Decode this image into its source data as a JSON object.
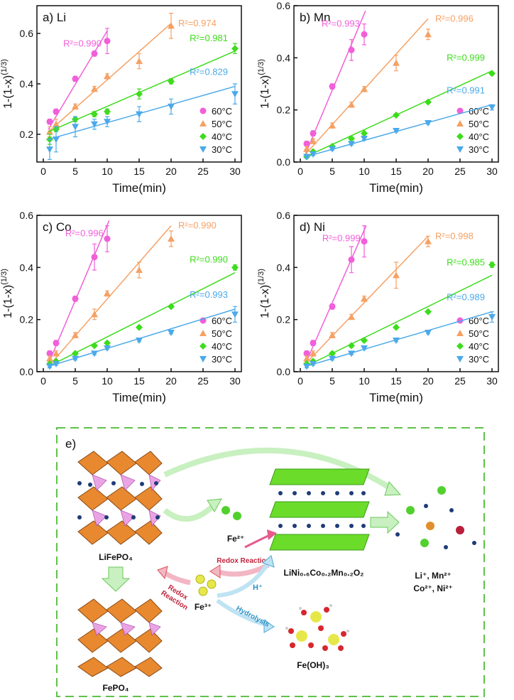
{
  "chart_data": [
    {
      "type": "scatter",
      "title": "a) Li",
      "xlabel": "Time(min)",
      "ylabel": "1-(1-x)",
      "ylabel_sup": "(1/3)",
      "x": [
        1,
        2,
        5,
        8,
        10,
        15,
        20,
        30
      ],
      "xlim": [
        -1,
        31
      ],
      "xticks": [
        0,
        5,
        10,
        15,
        20,
        25,
        30
      ],
      "ylim": [
        0.09,
        0.71
      ],
      "yticks": [
        0.2,
        0.4,
        0.6
      ],
      "legend": "lower right",
      "series": [
        {
          "name": "60°C",
          "color": "#f15fd9",
          "marker": "circle",
          "values": [
            0.25,
            0.29,
            0.42,
            0.52,
            0.57,
            null,
            null,
            null
          ],
          "errors": [
            0.01,
            0.01,
            0.01,
            0.01,
            0.05,
            null,
            null,
            null
          ],
          "fit": {
            "x": [
              0.8,
              10
            ],
            "y": [
              0.22,
              0.61
            ]
          },
          "r2": "R²=0.990"
        },
        {
          "name": "50°C",
          "color": "#f5a164",
          "marker": "triangle-up",
          "values": [
            0.21,
            0.24,
            0.31,
            0.38,
            0.43,
            0.49,
            0.63,
            null
          ],
          "errors": [
            0.02,
            0.02,
            0.01,
            0.01,
            0.01,
            0.03,
            0.05,
            null
          ],
          "fit": {
            "x": [
              0.8,
              20
            ],
            "y": [
              0.21,
              0.64
            ]
          },
          "r2": "R²=0.974"
        },
        {
          "name": "40°C",
          "color": "#3ddc1c",
          "marker": "diamond",
          "values": [
            0.18,
            0.22,
            0.26,
            0.28,
            0.29,
            0.36,
            0.41,
            0.54
          ],
          "errors": [
            0.02,
            0.01,
            0.01,
            0.01,
            0.01,
            0.02,
            0.01,
            0.02
          ],
          "fit": {
            "x": [
              0.8,
              30
            ],
            "y": [
              0.21,
              0.53
            ]
          },
          "r2": "R²=0.981"
        },
        {
          "name": "30°C",
          "color": "#4ba9ea",
          "marker": "triangle-down",
          "values": [
            0.14,
            0.18,
            0.23,
            0.24,
            0.25,
            0.28,
            0.31,
            0.36
          ],
          "errors": [
            0.04,
            0.05,
            0.04,
            0.02,
            0.02,
            0.03,
            0.03,
            0.04
          ],
          "fit": {
            "x": [
              0.8,
              30
            ],
            "y": [
              0.18,
              0.39
            ]
          },
          "r2": "R²=0.829"
        }
      ]
    },
    {
      "type": "scatter",
      "title": "b) Mn",
      "xlabel": "Time(min)",
      "ylabel": "1-(1-x)",
      "ylabel_sup": "(1/3)",
      "x": [
        1,
        2,
        5,
        8,
        10,
        15,
        20,
        30
      ],
      "xlim": [
        -1,
        31
      ],
      "xticks": [
        0,
        5,
        10,
        15,
        20,
        25,
        30
      ],
      "ylim": [
        0,
        0.6
      ],
      "yticks": [
        0.0,
        0.2,
        0.4,
        0.6
      ],
      "legend": "lower right",
      "series": [
        {
          "name": "60°C",
          "color": "#f15fd9",
          "marker": "circle",
          "values": [
            0.07,
            0.11,
            0.29,
            0.43,
            0.49,
            null,
            null,
            null
          ],
          "errors": [
            0.01,
            0.01,
            0.01,
            0.04,
            0.04,
            null,
            null,
            null
          ],
          "fit": {
            "x": [
              0.8,
              10.2
            ],
            "y": [
              0.03,
              0.58
            ]
          },
          "r2": "R²=0.993"
        },
        {
          "name": "50°C",
          "color": "#f5a164",
          "marker": "triangle-up",
          "values": [
            0.05,
            0.08,
            0.14,
            0.22,
            0.28,
            0.38,
            0.49,
            null
          ],
          "errors": [
            0.01,
            0.01,
            0.01,
            0.01,
            0.01,
            0.03,
            0.02,
            null
          ],
          "fit": {
            "x": [
              0.8,
              20
            ],
            "y": [
              0.03,
              0.55
            ]
          },
          "r2": "R²=0.996"
        },
        {
          "name": "40°C",
          "color": "#3ddc1c",
          "marker": "diamond",
          "values": [
            0.02,
            0.04,
            0.06,
            0.09,
            0.11,
            0.18,
            0.23,
            0.34
          ],
          "errors": [
            0.005,
            0.005,
            0.005,
            0.005,
            0.005,
            0.005,
            0.005,
            0.005
          ],
          "fit": {
            "x": [
              0.8,
              30
            ],
            "y": [
              0.02,
              0.35
            ]
          },
          "r2": "R²=0.999"
        },
        {
          "name": "30°C",
          "color": "#4ba9ea",
          "marker": "triangle-down",
          "values": [
            0.02,
            0.03,
            0.05,
            0.07,
            0.09,
            0.12,
            0.15,
            0.21
          ],
          "errors": [
            0.005,
            0.005,
            0.005,
            0.005,
            0.005,
            0.005,
            0.005,
            0.01
          ],
          "fit": {
            "x": [
              0.8,
              30
            ],
            "y": [
              0.02,
              0.22
            ]
          },
          "r2": "R²=0.991"
        }
      ]
    },
    {
      "type": "scatter",
      "title": "c) Co",
      "xlabel": "Time(min)",
      "ylabel": "1-(1-x)",
      "ylabel_sup": "(1/3)",
      "x": [
        1,
        2,
        5,
        8,
        10,
        15,
        20,
        30
      ],
      "xlim": [
        -1,
        31
      ],
      "xticks": [
        0,
        5,
        10,
        15,
        20,
        25,
        30
      ],
      "ylim": [
        0,
        0.6
      ],
      "yticks": [
        0.0,
        0.2,
        0.4,
        0.6
      ],
      "legend": "lower right",
      "series": [
        {
          "name": "60°C",
          "color": "#f15fd9",
          "marker": "circle",
          "values": [
            0.07,
            0.11,
            0.28,
            0.44,
            0.51,
            null,
            null,
            null
          ],
          "errors": [
            0.01,
            0.01,
            0.01,
            0.05,
            0.05,
            null,
            null,
            null
          ],
          "fit": {
            "x": [
              0.8,
              10.3
            ],
            "y": [
              0.03,
              0.58
            ]
          },
          "r2": "R²=0.996"
        },
        {
          "name": "50°C",
          "color": "#f5a164",
          "marker": "triangle-up",
          "values": [
            0.05,
            0.07,
            0.14,
            0.22,
            0.3,
            0.39,
            0.51,
            null
          ],
          "errors": [
            0.01,
            0.01,
            0.01,
            0.02,
            0.01,
            0.03,
            0.03,
            null
          ],
          "fit": {
            "x": [
              0.8,
              20
            ],
            "y": [
              0.02,
              0.56
            ]
          },
          "r2": "R²=0.990"
        },
        {
          "name": "40°C",
          "color": "#3ddc1c",
          "marker": "diamond",
          "values": [
            0.03,
            0.04,
            0.07,
            0.1,
            0.11,
            0.17,
            0.25,
            0.4
          ],
          "errors": [
            0.005,
            0.005,
            0.005,
            0.005,
            0.005,
            0.005,
            0.005,
            0.01
          ],
          "fit": {
            "x": [
              0.8,
              30
            ],
            "y": [
              0.02,
              0.38
            ]
          },
          "r2": "R²=0.990"
        },
        {
          "name": "30°C",
          "color": "#4ba9ea",
          "marker": "triangle-down",
          "values": [
            0.02,
            0.03,
            0.05,
            0.07,
            0.09,
            0.12,
            0.15,
            0.22
          ],
          "errors": [
            0.005,
            0.005,
            0.005,
            0.005,
            0.005,
            0.005,
            0.005,
            0.03
          ],
          "fit": {
            "x": [
              0.8,
              30
            ],
            "y": [
              0.02,
              0.24
            ]
          },
          "r2": "R²=0.993"
        }
      ]
    },
    {
      "type": "scatter",
      "title": "d) Ni",
      "xlabel": "Time(min)",
      "ylabel": "1-(1-x)",
      "ylabel_sup": "(1/3)",
      "x": [
        1,
        2,
        5,
        8,
        10,
        15,
        20,
        30
      ],
      "xlim": [
        -1,
        31
      ],
      "xticks": [
        0,
        5,
        10,
        15,
        20,
        25,
        30
      ],
      "ylim": [
        0,
        0.6
      ],
      "yticks": [
        0.0,
        0.2,
        0.4,
        0.6
      ],
      "legend": "lower right",
      "series": [
        {
          "name": "60°C",
          "color": "#f15fd9",
          "marker": "circle",
          "values": [
            0.07,
            0.11,
            0.25,
            0.43,
            0.5,
            null,
            null,
            null
          ],
          "errors": [
            0.01,
            0.01,
            0.01,
            0.05,
            0.06,
            null,
            null,
            null
          ],
          "fit": {
            "x": [
              0.8,
              10.3
            ],
            "y": [
              0.03,
              0.56
            ]
          },
          "r2": "R²=0.999"
        },
        {
          "name": "50°C",
          "color": "#f5a164",
          "marker": "triangle-up",
          "values": [
            0.05,
            0.07,
            0.14,
            0.21,
            0.28,
            0.37,
            0.5,
            null
          ],
          "errors": [
            0.01,
            0.01,
            0.01,
            0.01,
            0.01,
            0.05,
            0.02,
            null
          ],
          "fit": {
            "x": [
              0.8,
              20
            ],
            "y": [
              0.03,
              0.52
            ]
          },
          "r2": "R²=0.998"
        },
        {
          "name": "40°C",
          "color": "#3ddc1c",
          "marker": "diamond",
          "values": [
            0.03,
            0.04,
            0.07,
            0.1,
            0.12,
            0.17,
            0.23,
            0.41
          ],
          "errors": [
            0.005,
            0.005,
            0.005,
            0.005,
            0.005,
            0.005,
            0.005,
            0.01
          ],
          "fit": {
            "x": [
              0.8,
              30
            ],
            "y": [
              0.02,
              0.37
            ]
          },
          "r2": "R²=0.985"
        },
        {
          "name": "30°C",
          "color": "#4ba9ea",
          "marker": "triangle-down",
          "values": [
            0.02,
            0.03,
            0.05,
            0.07,
            0.09,
            0.12,
            0.15,
            0.21
          ],
          "errors": [
            0.005,
            0.005,
            0.005,
            0.005,
            0.005,
            0.005,
            0.005,
            0.02
          ],
          "fit": {
            "x": [
              0.8,
              30
            ],
            "y": [
              0.02,
              0.23
            ]
          },
          "r2": "R²=0.989"
        }
      ]
    }
  ],
  "diagram": {
    "label": "e)",
    "lifepo4": "LiFePO₄",
    "fepo4": "FePO₄",
    "fe2": "Fe²⁺",
    "fe3": "Fe³⁺",
    "redox_top": "Redox Reaction",
    "redox_left": [
      "Redox",
      "Reaction"
    ],
    "h": "H⁺",
    "hydrolysis": "Hydrolysis",
    "ncm": "LiNi₀.₆Co₀.₂Mn₀.₂O₂",
    "feoh3": "Fe(OH)₃",
    "ions": [
      "Li⁺, Mn²⁺",
      "Co²⁺, Ni²⁺"
    ]
  }
}
